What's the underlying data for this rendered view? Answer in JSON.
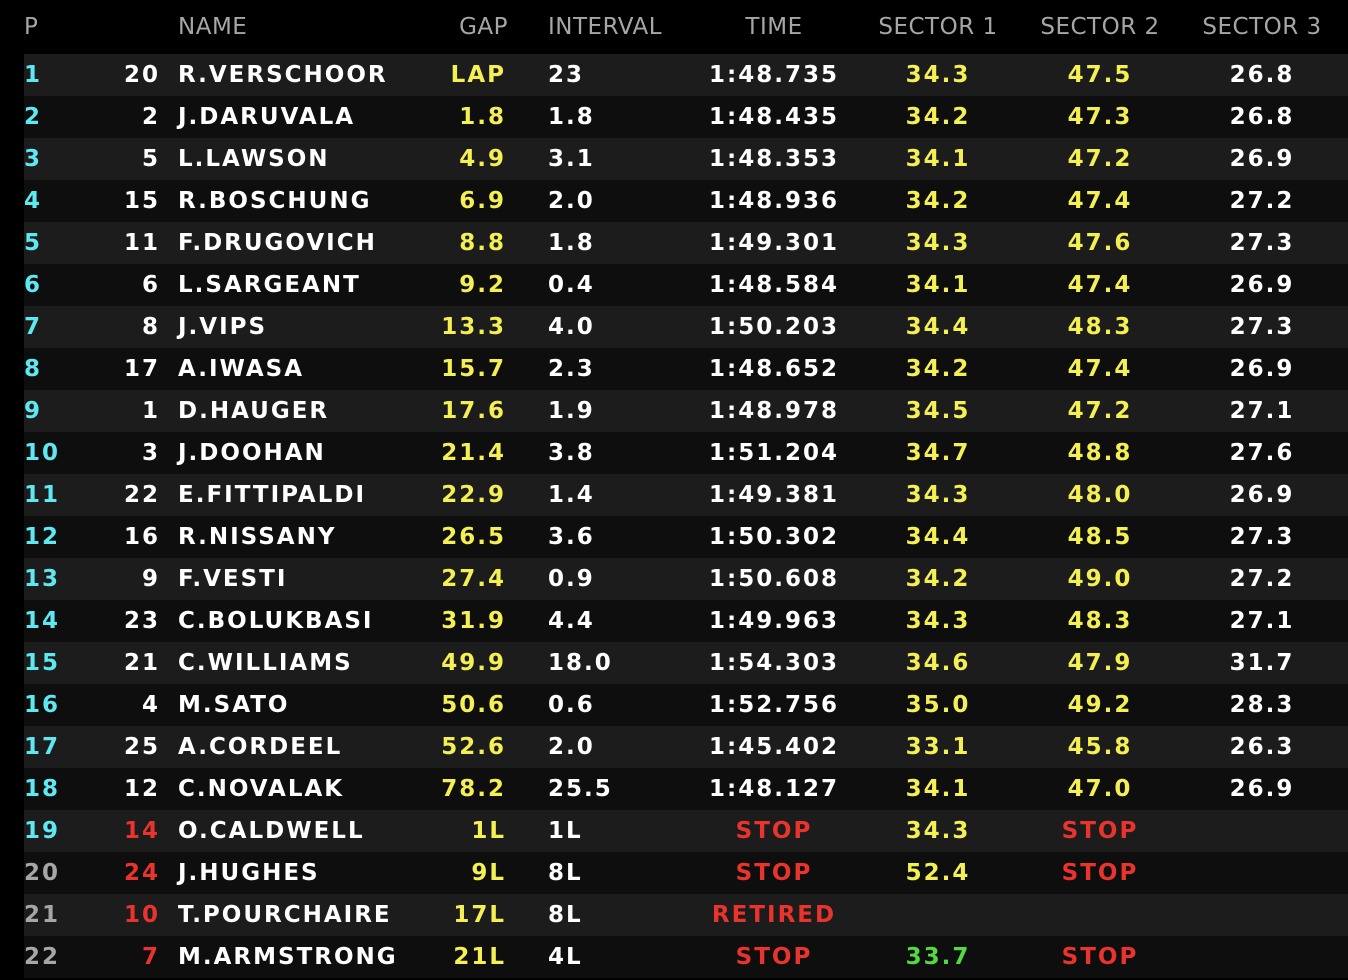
{
  "header": {
    "pos": "P",
    "name": "NAME",
    "gap": "GAP",
    "interval": "INTERVAL",
    "time": "TIME",
    "sector1": "SECTOR 1",
    "sector2": "SECTOR 2",
    "sector3": "SECTOR 3"
  },
  "colors": {
    "position_active": "#5ee8f2",
    "position_inactive": "#a6a6a6",
    "gap_yellow": "#f4f054",
    "stop_red": "#e8342c",
    "personal_best_green": "#55d942",
    "row_odd": "#1c1c1c",
    "row_even": "#0e0e0e"
  },
  "rows": [
    {
      "pos": "1",
      "num": "20",
      "name": "R.VERSCHOOR",
      "gap": "LAP",
      "interval": "23",
      "time": "1:48.735",
      "s1": "34.3",
      "s2": "47.5",
      "s3": "26.8"
    },
    {
      "pos": "2",
      "num": "2",
      "name": "J.DARUVALA",
      "gap": "1.8",
      "interval": "1.8",
      "time": "1:48.435",
      "s1": "34.2",
      "s2": "47.3",
      "s3": "26.8"
    },
    {
      "pos": "3",
      "num": "5",
      "name": "L.LAWSON",
      "gap": "4.9",
      "interval": "3.1",
      "time": "1:48.353",
      "s1": "34.1",
      "s2": "47.2",
      "s3": "26.9"
    },
    {
      "pos": "4",
      "num": "15",
      "name": "R.BOSCHUNG",
      "gap": "6.9",
      "interval": "2.0",
      "time": "1:48.936",
      "s1": "34.2",
      "s2": "47.4",
      "s3": "27.2"
    },
    {
      "pos": "5",
      "num": "11",
      "name": "F.DRUGOVICH",
      "gap": "8.8",
      "interval": "1.8",
      "time": "1:49.301",
      "s1": "34.3",
      "s2": "47.6",
      "s3": "27.3"
    },
    {
      "pos": "6",
      "num": "6",
      "name": "L.SARGEANT",
      "gap": "9.2",
      "interval": "0.4",
      "time": "1:48.584",
      "s1": "34.1",
      "s2": "47.4",
      "s3": "26.9"
    },
    {
      "pos": "7",
      "num": "8",
      "name": "J.VIPS",
      "gap": "13.3",
      "interval": "4.0",
      "time": "1:50.203",
      "s1": "34.4",
      "s2": "48.3",
      "s3": "27.3"
    },
    {
      "pos": "8",
      "num": "17",
      "name": "A.IWASA",
      "gap": "15.7",
      "interval": "2.3",
      "time": "1:48.652",
      "s1": "34.2",
      "s2": "47.4",
      "s3": "26.9"
    },
    {
      "pos": "9",
      "num": "1",
      "name": "D.HAUGER",
      "gap": "17.6",
      "interval": "1.9",
      "time": "1:48.978",
      "s1": "34.5",
      "s2": "47.2",
      "s3": "27.1"
    },
    {
      "pos": "10",
      "num": "3",
      "name": "J.DOOHAN",
      "gap": "21.4",
      "interval": "3.8",
      "time": "1:51.204",
      "s1": "34.7",
      "s2": "48.8",
      "s3": "27.6"
    },
    {
      "pos": "11",
      "num": "22",
      "name": "E.FITTIPALDI",
      "gap": "22.9",
      "interval": "1.4",
      "time": "1:49.381",
      "s1": "34.3",
      "s2": "48.0",
      "s3": "26.9"
    },
    {
      "pos": "12",
      "num": "16",
      "name": "R.NISSANY",
      "gap": "26.5",
      "interval": "3.6",
      "time": "1:50.302",
      "s1": "34.4",
      "s2": "48.5",
      "s3": "27.3"
    },
    {
      "pos": "13",
      "num": "9",
      "name": "F.VESTI",
      "gap": "27.4",
      "interval": "0.9",
      "time": "1:50.608",
      "s1": "34.2",
      "s2": "49.0",
      "s3": "27.2"
    },
    {
      "pos": "14",
      "num": "23",
      "name": "C.BOLUKBASI",
      "gap": "31.9",
      "interval": "4.4",
      "time": "1:49.963",
      "s1": "34.3",
      "s2": "48.3",
      "s3": "27.1"
    },
    {
      "pos": "15",
      "num": "21",
      "name": "C.WILLIAMS",
      "gap": "49.9",
      "interval": "18.0",
      "time": "1:54.303",
      "s1": "34.6",
      "s2": "47.9",
      "s3": "31.7"
    },
    {
      "pos": "16",
      "num": "4",
      "name": "M.SATO",
      "gap": "50.6",
      "interval": "0.6",
      "time": "1:52.756",
      "s1": "35.0",
      "s2": "49.2",
      "s3": "28.3"
    },
    {
      "pos": "17",
      "num": "25",
      "name": "A.CORDEEL",
      "gap": "52.6",
      "interval": "2.0",
      "time": "1:45.402",
      "s1": "33.1",
      "s2": "45.8",
      "s3": "26.3"
    },
    {
      "pos": "18",
      "num": "12",
      "name": "C.NOVALAK",
      "gap": "78.2",
      "interval": "25.5",
      "time": "1:48.127",
      "s1": "34.1",
      "s2": "47.0",
      "s3": "26.9"
    },
    {
      "pos": "19",
      "num": "14",
      "name": "O.CALDWELL",
      "gap": "1L",
      "interval": "1L",
      "time": "STOP",
      "s1": "34.3",
      "s2": "STOP",
      "s3": ""
    },
    {
      "pos": "20",
      "num": "24",
      "name": "J.HUGHES",
      "gap": "9L",
      "interval": "8L",
      "time": "STOP",
      "s1": "52.4",
      "s2": "STOP",
      "s3": ""
    },
    {
      "pos": "21",
      "num": "10",
      "name": "T.POURCHAIRE",
      "gap": "17L",
      "interval": "8L",
      "time": "RETIRED",
      "s1": "",
      "s2": "",
      "s3": ""
    },
    {
      "pos": "22",
      "num": "7",
      "name": "M.ARMSTRONG",
      "gap": "21L",
      "interval": "4L",
      "time": "STOP",
      "s1": "33.7",
      "s2": "STOP",
      "s3": ""
    }
  ]
}
